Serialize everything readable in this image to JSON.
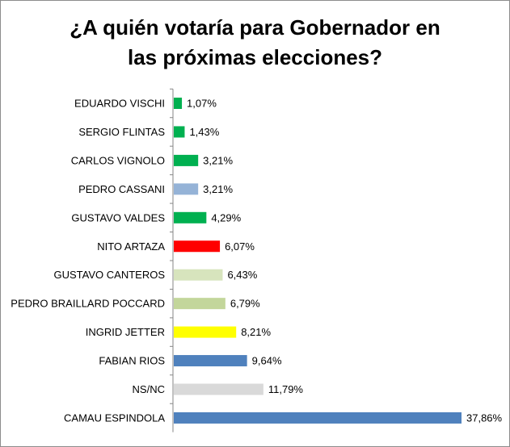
{
  "chart_data": {
    "type": "bar",
    "orientation": "horizontal",
    "title_line1": "¿A quién votaría para  Gobernador en",
    "title_line2": "las próximas elecciones?",
    "categories": [
      "EDUARDO VISCHI",
      "SERGIO FLINTAS",
      "CARLOS VIGNOLO",
      "PEDRO CASSANI",
      "GUSTAVO VALDES",
      "NITO ARTAZA",
      "GUSTAVO CANTEROS",
      "PEDRO BRAILLARD POCCARD",
      "INGRID JETTER",
      "FABIAN RIOS",
      "NS/NC",
      "CAMAU ESPINDOLA"
    ],
    "values": [
      1.07,
      1.43,
      3.21,
      3.21,
      4.29,
      6.07,
      6.43,
      6.79,
      8.21,
      9.64,
      11.79,
      37.86
    ],
    "value_labels": [
      "1,07%",
      "1,43%",
      "3,21%",
      "3,21%",
      "4,29%",
      "6,07%",
      "6,43%",
      "6,79%",
      "8,21%",
      "9,64%",
      "11,79%",
      "37,86%"
    ],
    "colors": [
      "#00b050",
      "#00b050",
      "#00b050",
      "#95b3d7",
      "#00b050",
      "#ff0000",
      "#d7e4bd",
      "#c3d69b",
      "#ffff00",
      "#4f81bd",
      "#d9d9d9",
      "#4f81bd"
    ],
    "xlim": [
      0,
      37.86
    ],
    "grid": false,
    "legend": "none"
  }
}
